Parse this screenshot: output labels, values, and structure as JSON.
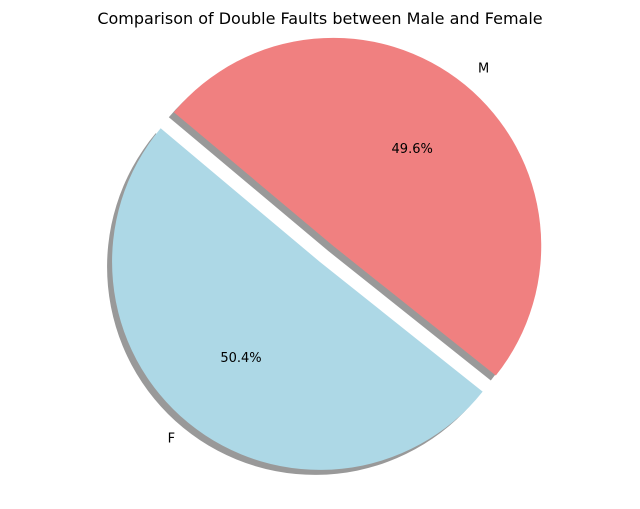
{
  "chart_data": {
    "type": "pie",
    "title": "Comparison of Double Faults between Male and Female",
    "slices": [
      {
        "label": "F",
        "value": 50.4,
        "pct_label": "50.4%",
        "color": "#add8e6",
        "exploded": false
      },
      {
        "label": "M",
        "value": 49.6,
        "pct_label": "49.6%",
        "color": "#f08080",
        "exploded": true
      }
    ],
    "start_angle_deg": 140,
    "shadow": true
  }
}
